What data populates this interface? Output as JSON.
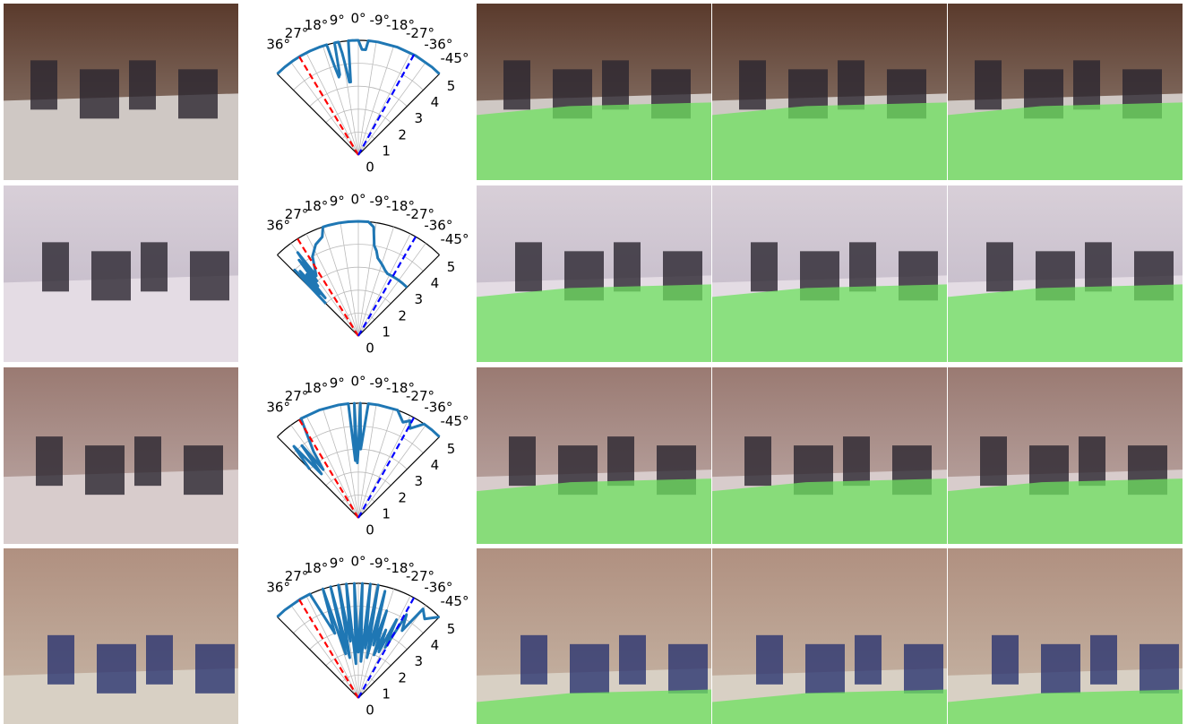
{
  "chart_data": [
    {
      "type": "polar",
      "thetalim": [
        45,
        -45
      ],
      "rlim": [
        0,
        5
      ],
      "grid": true,
      "thetaticks": [
        {
          "value": 36,
          "label": "36°"
        },
        {
          "value": 27,
          "label": "27°"
        },
        {
          "value": 18,
          "label": "18°"
        },
        {
          "value": 9,
          "label": "9°"
        },
        {
          "value": 0,
          "label": "0°"
        },
        {
          "value": -9,
          "label": "-9°"
        },
        {
          "value": -18,
          "label": "-18°"
        },
        {
          "value": -27,
          "label": "-27°"
        },
        {
          "value": -36,
          "label": "-36°"
        },
        {
          "value": -45,
          "label": "-45°"
        }
      ],
      "rticks": [
        0,
        1,
        2,
        3,
        4,
        5
      ],
      "series": [
        {
          "color": "#1f77b4",
          "x": [
            45,
            40,
            35,
            30,
            25,
            20,
            16,
            15,
            14,
            13,
            12,
            11,
            10,
            9,
            8,
            7,
            6,
            5,
            4,
            3,
            2,
            1,
            0,
            -2,
            -4,
            -5,
            -6,
            -10,
            -20,
            -30,
            -40,
            -45
          ],
          "values": [
            5,
            5,
            5,
            5,
            5,
            5,
            5,
            4.0,
            3.5,
            3.6,
            5,
            5,
            5,
            4.5,
            3.8,
            3.2,
            3.2,
            5,
            5,
            5,
            5,
            5,
            5,
            4.6,
            4.6,
            5,
            5,
            5,
            5,
            5,
            5,
            5
          ]
        },
        {
          "color": "red",
          "dash": true,
          "x": [
            31,
            31
          ],
          "values": [
            0,
            5
          ]
        },
        {
          "color": "blue",
          "dash": true,
          "x": [
            -29,
            -29
          ],
          "values": [
            0,
            5
          ]
        }
      ]
    },
    {
      "type": "polar",
      "thetalim": [
        45,
        -45
      ],
      "rlim": [
        0,
        5
      ],
      "grid": true,
      "thetaticks": [
        {
          "value": 36,
          "label": "36°"
        },
        {
          "value": 27,
          "label": "27°"
        },
        {
          "value": 18,
          "label": "18°"
        },
        {
          "value": 9,
          "label": "9°"
        },
        {
          "value": 0,
          "label": "0°"
        },
        {
          "value": -9,
          "label": "-9°"
        },
        {
          "value": -18,
          "label": "-18°"
        },
        {
          "value": -27,
          "label": "-27°"
        },
        {
          "value": -36,
          "label": "-36°"
        },
        {
          "value": -45,
          "label": "-45°"
        }
      ],
      "rticks": [
        0,
        1,
        2,
        3,
        4,
        5
      ],
      "series": [
        {
          "color": "#1f77b4",
          "x": [
            45,
            44,
            43,
            42,
            41,
            40,
            39,
            38,
            37,
            36,
            35,
            30,
            25,
            20,
            18,
            15,
            10,
            5,
            0,
            -5,
            -8,
            -10,
            -12,
            -14,
            -16,
            -18,
            -20,
            -22,
            -25,
            -30,
            -35,
            -40,
            -45
          ],
          "values": [
            2.0,
            4.0,
            2.5,
            3.8,
            2.2,
            3.5,
            2.8,
            4.2,
            3.0,
            4.5,
            3.2,
            4.0,
            4.4,
            4.6,
            5,
            5,
            5,
            5,
            5,
            5,
            4.8,
            4.0,
            3.8,
            3.5,
            3.4,
            3.3,
            3.2,
            3.1,
            3.0,
            3.0,
            3.0,
            3.0,
            3.0
          ]
        },
        {
          "color": "red",
          "dash": true,
          "x": [
            32,
            32
          ],
          "values": [
            0,
            5
          ]
        },
        {
          "color": "blue",
          "dash": true,
          "x": [
            -30,
            -30
          ],
          "values": [
            0,
            5
          ]
        }
      ]
    },
    {
      "type": "polar",
      "thetalim": [
        45,
        -45
      ],
      "rlim": [
        0,
        5
      ],
      "grid": true,
      "thetaticks": [
        {
          "value": 36,
          "label": "36°"
        },
        {
          "value": 27,
          "label": "27°"
        },
        {
          "value": 18,
          "label": "18°"
        },
        {
          "value": 9,
          "label": "9°"
        },
        {
          "value": 0,
          "label": "0°"
        },
        {
          "value": -9,
          "label": "-9°"
        },
        {
          "value": -18,
          "label": "-18°"
        },
        {
          "value": -27,
          "label": "-27°"
        },
        {
          "value": -36,
          "label": "-36°"
        },
        {
          "value": -45,
          "label": "-45°"
        }
      ],
      "rticks": [
        0,
        1,
        2,
        3,
        4,
        5
      ],
      "series": [
        {
          "color": "#1f77b4",
          "x": [
            45,
            42,
            40,
            38,
            36,
            34,
            30,
            20,
            10,
            5,
            3,
            2,
            1,
            0,
            -1,
            -2,
            -5,
            -10,
            -20,
            -25,
            -28,
            -30,
            -35,
            -40,
            -45
          ],
          "values": [
            3.0,
            4.2,
            2.5,
            4.0,
            2.6,
            3.5,
            5,
            5,
            5,
            5,
            2.5,
            5,
            2.4,
            3.0,
            5,
            3.0,
            5,
            5,
            5,
            4.6,
            4.8,
            4.5,
            5,
            5,
            5
          ]
        },
        {
          "color": "red",
          "dash": true,
          "x": [
            31,
            31
          ],
          "values": [
            0,
            5
          ]
        },
        {
          "color": "blue",
          "dash": true,
          "x": [
            -29,
            -29
          ],
          "values": [
            0,
            5
          ]
        }
      ]
    },
    {
      "type": "polar",
      "thetalim": [
        45,
        -45
      ],
      "rlim": [
        0,
        5
      ],
      "grid": true,
      "thetaticks": [
        {
          "value": 36,
          "label": "36°"
        },
        {
          "value": 27,
          "label": "27°"
        },
        {
          "value": 18,
          "label": "18°"
        },
        {
          "value": 9,
          "label": "9°"
        },
        {
          "value": 0,
          "label": "0°"
        },
        {
          "value": -9,
          "label": "-9°"
        },
        {
          "value": -18,
          "label": "-18°"
        },
        {
          "value": -27,
          "label": "-27°"
        },
        {
          "value": -36,
          "label": "-36°"
        },
        {
          "value": -45,
          "label": "-45°"
        }
      ],
      "rticks": [
        0,
        1,
        2,
        3,
        4,
        5
      ],
      "series": [
        {
          "color": "#1f77b4",
          "x": [
            45,
            40,
            30,
            25,
            20,
            18,
            16,
            14,
            12,
            10,
            8,
            6,
            4,
            2,
            0,
            -2,
            -4,
            -6,
            -8,
            -10,
            -12,
            -14,
            -16,
            -18,
            -20,
            -22,
            -24,
            -26,
            -28,
            -30,
            -33,
            -36,
            -40,
            -45
          ],
          "values": [
            5,
            5,
            5,
            5,
            3.0,
            5,
            2.0,
            5,
            1.8,
            5,
            2.5,
            5,
            1.5,
            5,
            2.0,
            5,
            1.6,
            5,
            2.2,
            5,
            1.8,
            4.8,
            2.4,
            4.0,
            2.0,
            3.2,
            2.2,
            3.8,
            2.5,
            4.2,
            3.5,
            4.8,
            4.5,
            5
          ]
        },
        {
          "color": "red",
          "dash": true,
          "x": [
            31,
            31
          ],
          "values": [
            0,
            5
          ]
        },
        {
          "color": "blue",
          "dash": true,
          "x": [
            -29,
            -29
          ],
          "values": [
            0,
            5
          ]
        }
      ]
    }
  ]
}
